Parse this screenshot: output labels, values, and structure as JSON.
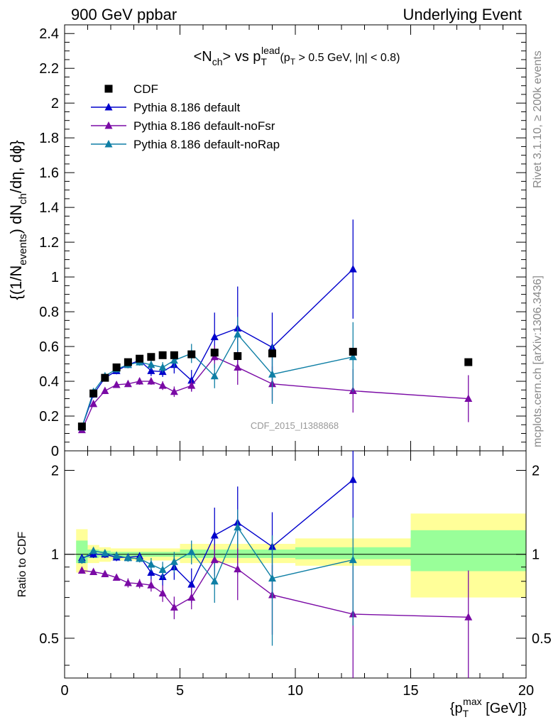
{
  "header": {
    "left": "900 GeV ppbar",
    "right": "Underlying Event"
  },
  "side": {
    "rivet": "Rivet 3.1.10, ≥ 200k events",
    "mcplots": "mcplots.cern.ch [arXiv:1306.3436]"
  },
  "watermark": "CDF_2015_I1388868",
  "colors": {
    "data": "#000000",
    "default": "#0000cc",
    "noFsr": "#7a0aa5",
    "noRap": "#0f7fa5",
    "band_inner": "#99ff99",
    "band_outer": "#ffff99"
  },
  "chart_data": [
    {
      "type": "scatter",
      "panel": "main",
      "title": "<N_ch> vs p_T^lead (p_T > 0.5 GeV, |η| < 0.8)",
      "ylabel": "{(1/N_events) dN_ch/dη, dφ}",
      "xlim": [
        0,
        20
      ],
      "ylim": [
        0,
        2.45
      ],
      "yticks": [
        "0",
        "0.2",
        "0.4",
        "0.6",
        "0.8",
        "1",
        "1.2",
        "1.4",
        "1.6",
        "1.8",
        "2",
        "2.2",
        "2.4"
      ],
      "legend": [
        "CDF",
        "Pythia 8.186 default",
        "Pythia 8.186 default-noFsr",
        "Pythia 8.186 default-noRap"
      ],
      "x": [
        0.75,
        1.25,
        1.75,
        2.25,
        2.75,
        3.25,
        3.75,
        4.25,
        4.75,
        5.5,
        6.5,
        7.5,
        9.0,
        12.5,
        17.5
      ],
      "data": {
        "name": "CDF",
        "values": [
          0.14,
          0.33,
          0.42,
          0.48,
          0.51,
          0.53,
          0.54,
          0.55,
          0.55,
          0.555,
          0.565,
          0.545,
          0.56,
          0.57,
          0.51
        ]
      },
      "series": [
        {
          "name": "Pythia 8.186 default",
          "values": [
            0.135,
            0.325,
            0.42,
            0.46,
            0.495,
            0.52,
            0.46,
            0.455,
            0.495,
            0.405,
            0.655,
            0.705,
            0.595,
            1.045,
            null
          ],
          "err": [
            0.02,
            0.02,
            0.02,
            0.02,
            0.02,
            0.02,
            0.03,
            0.03,
            0.05,
            0.06,
            0.14,
            0.24,
            0.2,
            0.285,
            null
          ]
        },
        {
          "name": "Pythia 8.186 default-noFsr",
          "values": [
            0.12,
            0.27,
            0.345,
            0.38,
            0.385,
            0.4,
            0.4,
            0.375,
            0.34,
            0.375,
            0.54,
            0.48,
            0.385,
            0.345,
            0.3
          ],
          "err": [
            0.01,
            0.01,
            0.01,
            0.015,
            0.015,
            0.02,
            0.02,
            0.025,
            0.03,
            0.035,
            0.065,
            0.1,
            0.1,
            0.125,
            0.135
          ]
        },
        {
          "name": "Pythia 8.186 default-noRap",
          "values": [
            0.135,
            0.34,
            0.43,
            0.47,
            0.495,
            0.51,
            0.495,
            0.48,
            0.52,
            0.56,
            0.43,
            0.67,
            0.44,
            0.54,
            null
          ],
          "err": [
            0.01,
            0.02,
            0.02,
            0.02,
            0.02,
            0.02,
            0.03,
            0.03,
            0.04,
            0.055,
            0.07,
            0.1,
            0.17,
            0.2,
            null
          ]
        }
      ]
    },
    {
      "type": "scatter",
      "panel": "ratio",
      "ylabel": "Ratio to CDF",
      "xlabel": "{p_T^max [GeV]}",
      "xlim": [
        0,
        20
      ],
      "ylim": [
        0.36,
        2.35
      ],
      "log_y": true,
      "yticks": [
        "0.5",
        "1",
        "2"
      ],
      "xticks": [
        "0",
        "5",
        "10",
        "15",
        "20"
      ],
      "bands": [
        {
          "x": [
            0.5,
            1.0
          ],
          "inner": [
            0.93,
            1.12
          ],
          "outer": [
            0.86,
            1.23
          ]
        },
        {
          "x": [
            1.0,
            1.5
          ],
          "inner": [
            0.97,
            1.04
          ],
          "outer": [
            0.93,
            1.08
          ]
        },
        {
          "x": [
            1.5,
            2.0
          ],
          "inner": [
            0.98,
            1.03
          ],
          "outer": [
            0.94,
            1.06
          ]
        },
        {
          "x": [
            2.0,
            5.0
          ],
          "inner": [
            0.98,
            1.02
          ],
          "outer": [
            0.95,
            1.05
          ]
        },
        {
          "x": [
            5.0,
            10.0
          ],
          "inner": [
            0.97,
            1.04
          ],
          "outer": [
            0.93,
            1.09
          ]
        },
        {
          "x": [
            10.0,
            15.0
          ],
          "inner": [
            0.96,
            1.06
          ],
          "outer": [
            0.91,
            1.14
          ]
        },
        {
          "x": [
            15.0,
            20.0
          ],
          "inner": [
            0.87,
            1.22
          ],
          "outer": [
            0.7,
            1.4
          ]
        }
      ],
      "x": [
        0.75,
        1.25,
        1.75,
        2.25,
        2.75,
        3.25,
        3.75,
        4.25,
        4.75,
        5.5,
        6.5,
        7.5,
        9.0,
        12.5,
        17.5
      ],
      "series": [
        {
          "name": "Pythia 8.186 default",
          "values": [
            0.97,
            1.0,
            1.0,
            0.975,
            0.975,
            0.985,
            0.86,
            0.83,
            0.9,
            0.78,
            1.17,
            1.3,
            1.065,
            1.85,
            null
          ],
          "err": [
            0.03,
            0.03,
            0.03,
            0.03,
            0.03,
            0.03,
            0.05,
            0.06,
            0.09,
            0.11,
            0.3,
            0.45,
            0.35,
            0.5,
            null
          ]
        },
        {
          "name": "Pythia 8.186 default-noFsr",
          "values": [
            0.875,
            0.865,
            0.85,
            0.825,
            0.79,
            0.785,
            0.775,
            0.725,
            0.645,
            0.7,
            0.955,
            0.885,
            0.715,
            0.61,
            0.595
          ],
          "err": [
            0.02,
            0.02,
            0.02,
            0.02,
            0.03,
            0.03,
            0.04,
            0.05,
            0.06,
            0.065,
            0.12,
            0.2,
            0.2,
            0.3,
            0.28
          ]
        },
        {
          "name": "Pythia 8.186 default-noRap",
          "values": [
            0.955,
            1.03,
            1.01,
            0.99,
            0.97,
            0.965,
            0.92,
            0.88,
            0.94,
            1.02,
            0.8,
            1.25,
            0.82,
            0.955,
            null
          ],
          "err": [
            0.03,
            0.03,
            0.03,
            0.03,
            0.03,
            0.03,
            0.05,
            0.06,
            0.08,
            0.1,
            0.13,
            0.2,
            0.35,
            0.4,
            null
          ]
        }
      ]
    }
  ]
}
